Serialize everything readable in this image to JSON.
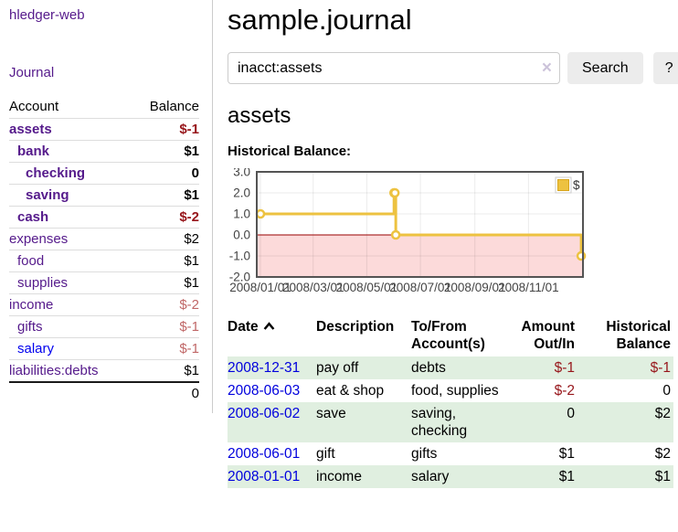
{
  "sidebar": {
    "app_title": "hledger-web",
    "journal_link": "Journal",
    "accounts_header": {
      "account": "Account",
      "balance": "Balance"
    },
    "accounts": [
      {
        "name": "assets",
        "indent": 0,
        "balance": "$-1",
        "bold": true
      },
      {
        "name": "bank",
        "indent": 1,
        "balance": "$1",
        "bold": true
      },
      {
        "name": "checking",
        "indent": 2,
        "balance": "0",
        "bold": true
      },
      {
        "name": "saving",
        "indent": 2,
        "balance": "$1",
        "bold": true
      },
      {
        "name": "cash",
        "indent": 1,
        "balance": "$-2",
        "bold": true
      },
      {
        "name": "expenses",
        "indent": 0,
        "balance": "$2",
        "bold": false
      },
      {
        "name": "food",
        "indent": 1,
        "balance": "$1",
        "bold": false
      },
      {
        "name": "supplies",
        "indent": 1,
        "balance": "$1",
        "bold": false
      },
      {
        "name": "income",
        "indent": 0,
        "balance": "$-2",
        "bold": false
      },
      {
        "name": "gifts",
        "indent": 1,
        "balance": "$-1",
        "bold": false
      },
      {
        "name": "salary",
        "indent": 1,
        "balance": "$-1",
        "bold": false,
        "unvisited": true
      },
      {
        "name": "liabilities:debts",
        "indent": 0,
        "balance": "$1",
        "bold": false
      }
    ],
    "total": "0"
  },
  "main": {
    "title": "sample.journal",
    "search": {
      "value": "inacct:assets",
      "button_label": "Search",
      "help_label": "?",
      "clear_icon": "×"
    },
    "account_heading": "assets",
    "chart_label": "Historical Balance:"
  },
  "chart_data": {
    "type": "line",
    "step": true,
    "title": "Historical Balance",
    "legend": "$",
    "legend_position": "top-right",
    "grid": true,
    "ylim": [
      -2,
      3
    ],
    "xlim_days": [
      -4.2,
      367
    ],
    "series": [
      {
        "name": "$",
        "color": "#edc240",
        "points": [
          {
            "date": "2008-01-01",
            "day": 0,
            "value": 1
          },
          {
            "date": "2008-06-01",
            "day": 152,
            "value": 2
          },
          {
            "date": "2008-06-02",
            "day": 153,
            "value": 2
          },
          {
            "date": "2008-06-03",
            "day": 154,
            "value": 0
          },
          {
            "date": "2008-12-31",
            "day": 365,
            "value": -1
          }
        ]
      }
    ],
    "x_ticks": [
      {
        "label": "2008/01/01",
        "day": 0
      },
      {
        "label": "2008/03/01",
        "day": 60
      },
      {
        "label": "2008/05/01",
        "day": 121
      },
      {
        "label": "2008/07/01",
        "day": 182
      },
      {
        "label": "2008/09/01",
        "day": 244
      },
      {
        "label": "2008/11/01",
        "day": 305
      }
    ],
    "y_ticks": [
      {
        "label": "3.0",
        "value": 3
      },
      {
        "label": "2.0",
        "value": 2
      },
      {
        "label": "1.0",
        "value": 1
      },
      {
        "label": "0.0",
        "value": 0
      },
      {
        "label": "-1.0",
        "value": -1
      },
      {
        "label": "-2.0",
        "value": -2
      }
    ],
    "colors": {
      "negative_region": "#fcdada",
      "zero_line": "#990000",
      "grid": "rgba(0,0,0,0.08)",
      "border": "#545454",
      "tick_text": "#444444"
    }
  },
  "register": {
    "headers": {
      "date": "Date",
      "description": "Description",
      "tofrom": "To/From Account(s)",
      "amount": "Amount Out/In",
      "balance": "Historical Balance"
    },
    "rows": [
      {
        "date": "2008-12-31",
        "description": "pay off",
        "accounts": "debts",
        "amount": "$-1",
        "balance": "$-1"
      },
      {
        "date": "2008-06-03",
        "description": "eat & shop",
        "accounts": "food, supplies",
        "amount": "$-2",
        "balance": "0"
      },
      {
        "date": "2008-06-02",
        "description": "save",
        "accounts": "saving, checking",
        "amount": "0",
        "balance": "$2"
      },
      {
        "date": "2008-06-01",
        "description": "gift",
        "accounts": "gifts",
        "amount": "$1",
        "balance": "$2"
      },
      {
        "date": "2008-01-01",
        "description": "income",
        "accounts": "salary",
        "amount": "$1",
        "balance": "$1"
      }
    ]
  }
}
